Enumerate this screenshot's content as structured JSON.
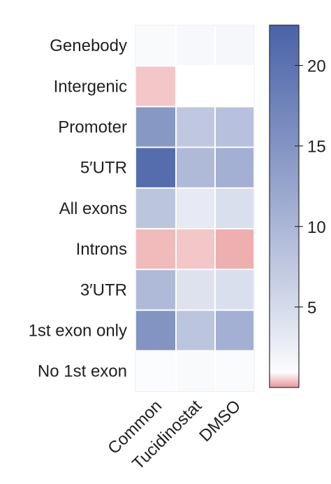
{
  "chart_data": {
    "type": "heatmap",
    "title": "",
    "xlabel": "",
    "ylabel": "",
    "rows": [
      "Genebody",
      "Intergenic",
      "Promoter",
      "5′UTR",
      "All exons",
      "Introns",
      "3′UTR",
      "1st exon only",
      "No 1st exon"
    ],
    "columns": [
      "Common",
      "Tucidinostat",
      "DMSO"
    ],
    "values": [
      [
        1.2,
        1.4,
        1.5
      ],
      [
        0.4,
        null,
        null
      ],
      [
        14.5,
        7.5,
        8.5
      ],
      [
        21,
        9.5,
        11
      ],
      [
        8,
        3,
        4.5
      ],
      [
        0.3,
        0.4,
        0.2
      ],
      [
        9.5,
        4,
        4.5
      ],
      [
        15,
        8,
        11
      ],
      [
        1,
        1.2,
        1.1
      ]
    ],
    "colorbar": {
      "range": [
        0,
        22.5
      ],
      "ticks": [
        5,
        10,
        15,
        20
      ],
      "colors": {
        "low": "#e06b6d",
        "mid": "#ffffff",
        "high": "#4a63a8"
      }
    },
    "legend_position": "right"
  }
}
